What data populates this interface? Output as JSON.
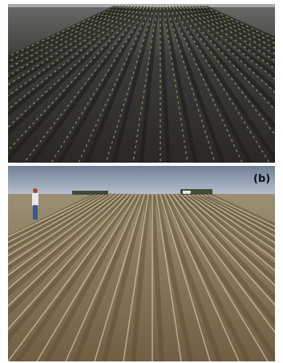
{
  "image": {
    "label": "(b)"
  }
}
